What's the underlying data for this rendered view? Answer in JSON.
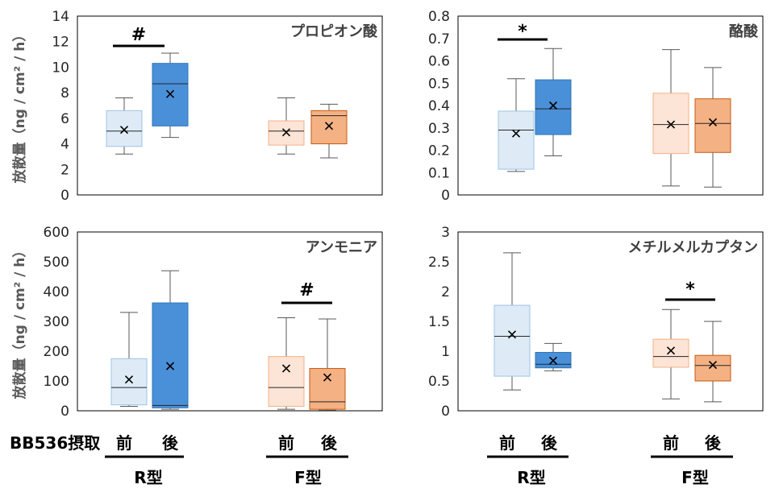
{
  "y_axis_label": "放散量（ng / cm² / h）",
  "bottom_labels": {
    "intake_label": "BB536摂取",
    "before": "前",
    "after": "後",
    "groups": [
      "R型",
      "F型"
    ]
  },
  "series_colors": {
    "R_before": "#deebf7",
    "R_after": "#4a90d9",
    "F_before": "#fce4d6",
    "F_after": "#f4b183"
  },
  "chart_data": [
    {
      "type": "box",
      "title": "プロピオン酸",
      "ylim": [
        0,
        14
      ],
      "yticks": [
        "0",
        "2",
        "4",
        "6",
        "8",
        "10",
        "12",
        "14"
      ],
      "categories": [
        "R型 前",
        "R型 後",
        "F型 前",
        "F型 後"
      ],
      "boxes": [
        {
          "min": 3.2,
          "q1": 3.8,
          "median": 5.0,
          "q3": 6.6,
          "max": 7.6,
          "mean": 5.1
        },
        {
          "min": 4.5,
          "q1": 5.4,
          "median": 8.7,
          "q3": 10.3,
          "max": 11.1,
          "mean": 7.9
        },
        {
          "min": 3.2,
          "q1": 3.9,
          "median": 5.0,
          "q3": 5.8,
          "max": 7.6,
          "mean": 4.9
        },
        {
          "min": 2.9,
          "q1": 4.0,
          "median": 6.2,
          "q3": 6.6,
          "max": 7.1,
          "mean": 5.4
        }
      ],
      "significance": [
        {
          "pair": "R型",
          "mark": "#"
        }
      ]
    },
    {
      "type": "box",
      "title": "酪酸",
      "ylim": [
        0,
        0.8
      ],
      "yticks": [
        "0",
        "0.1",
        "0.2",
        "0.3",
        "0.4",
        "0.5",
        "0.6",
        "0.7",
        "0.8"
      ],
      "categories": [
        "R型 前",
        "R型 後",
        "F型 前",
        "F型 後"
      ],
      "boxes": [
        {
          "min": 0.105,
          "q1": 0.115,
          "median": 0.29,
          "q3": 0.375,
          "max": 0.52,
          "mean": 0.275
        },
        {
          "min": 0.175,
          "q1": 0.27,
          "median": 0.385,
          "q3": 0.515,
          "max": 0.655,
          "mean": 0.4
        },
        {
          "min": 0.04,
          "q1": 0.185,
          "median": 0.315,
          "q3": 0.455,
          "max": 0.65,
          "mean": 0.315
        },
        {
          "min": 0.035,
          "q1": 0.19,
          "median": 0.32,
          "q3": 0.43,
          "max": 0.57,
          "mean": 0.325
        }
      ],
      "significance": [
        {
          "pair": "R型",
          "mark": "*"
        }
      ]
    },
    {
      "type": "box",
      "title": "アンモニア",
      "ylim": [
        0,
        600
      ],
      "yticks": [
        "0",
        "100",
        "200",
        "300",
        "400",
        "500",
        "600"
      ],
      "categories": [
        "R型 前",
        "R型 後",
        "F型 前",
        "F型 後"
      ],
      "boxes": [
        {
          "min": 15,
          "q1": 20,
          "median": 78,
          "q3": 175,
          "max": 330,
          "mean": 105
        },
        {
          "min": 5,
          "q1": 10,
          "median": 18,
          "q3": 362,
          "max": 470,
          "mean": 150
        },
        {
          "min": 5,
          "q1": 15,
          "median": 78,
          "q3": 182,
          "max": 312,
          "mean": 142
        },
        {
          "min": 2,
          "q1": 5,
          "median": 30,
          "q3": 142,
          "max": 308,
          "mean": 112
        }
      ],
      "significance": [
        {
          "pair": "F型",
          "mark": "#"
        }
      ]
    },
    {
      "type": "box",
      "title": "メチルメルカプタン",
      "ylim": [
        0,
        3
      ],
      "yticks": [
        "0",
        "0.5",
        "1",
        "1.5",
        "2",
        "2.5",
        "3"
      ],
      "categories": [
        "R型 前",
        "R型 後",
        "F型 前",
        "F型 後"
      ],
      "boxes": [
        {
          "min": 0.35,
          "q1": 0.58,
          "median": 1.25,
          "q3": 1.77,
          "max": 2.65,
          "mean": 1.28
        },
        {
          "min": 0.67,
          "q1": 0.72,
          "median": 0.78,
          "q3": 0.98,
          "max": 1.13,
          "mean": 0.84
        },
        {
          "min": 0.2,
          "q1": 0.73,
          "median": 0.91,
          "q3": 1.2,
          "max": 1.7,
          "mean": 1.01
        },
        {
          "min": 0.15,
          "q1": 0.5,
          "median": 0.76,
          "q3": 0.93,
          "max": 1.5,
          "mean": 0.77
        }
      ],
      "significance": [
        {
          "pair": "F型",
          "mark": "*"
        }
      ]
    }
  ]
}
